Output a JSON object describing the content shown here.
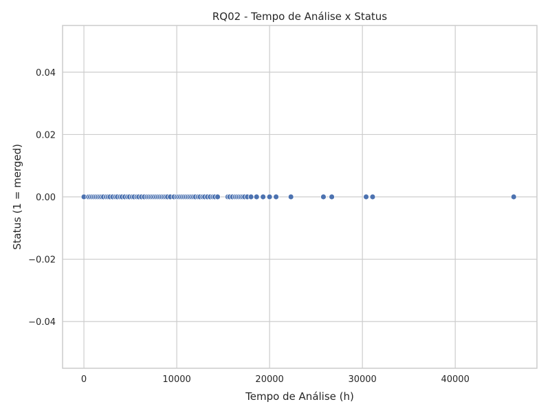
{
  "chart_data": {
    "type": "scatter",
    "title": "RQ02 - Tempo de Análise x Status",
    "xlabel": "Tempo de Análise (h)",
    "ylabel": "Status (1 = merged)",
    "xlim": [
      -2300,
      48800
    ],
    "ylim": [
      -0.055,
      0.055
    ],
    "x_ticks": [
      0,
      10000,
      20000,
      30000,
      40000
    ],
    "x_tick_labels": [
      "0",
      "10000",
      "20000",
      "30000",
      "40000"
    ],
    "y_ticks": [
      -0.04,
      -0.02,
      0.0,
      0.02,
      0.04
    ],
    "y_tick_labels": [
      "−0.04",
      "−0.02",
      "0.00",
      "0.02",
      "0.04"
    ],
    "grid": true,
    "marker_color": "#4c72b0",
    "points": [
      {
        "x": 0,
        "y": 0
      },
      {
        "x": 500,
        "y": 0
      },
      {
        "x": 700,
        "y": 0
      },
      {
        "x": 900,
        "y": 0
      },
      {
        "x": 1100,
        "y": 0
      },
      {
        "x": 1300,
        "y": 0
      },
      {
        "x": 1500,
        "y": 0
      },
      {
        "x": 1700,
        "y": 0
      },
      {
        "x": 1900,
        "y": 0
      },
      {
        "x": 2100,
        "y": 0
      },
      {
        "x": 2400,
        "y": 0
      },
      {
        "x": 2600,
        "y": 0
      },
      {
        "x": 2800,
        "y": 0
      },
      {
        "x": 3100,
        "y": 0
      },
      {
        "x": 3400,
        "y": 0
      },
      {
        "x": 3600,
        "y": 0
      },
      {
        "x": 3900,
        "y": 0
      },
      {
        "x": 4100,
        "y": 0
      },
      {
        "x": 4400,
        "y": 0
      },
      {
        "x": 4700,
        "y": 0
      },
      {
        "x": 4900,
        "y": 0
      },
      {
        "x": 5200,
        "y": 0
      },
      {
        "x": 5400,
        "y": 0
      },
      {
        "x": 5700,
        "y": 0
      },
      {
        "x": 5900,
        "y": 0
      },
      {
        "x": 6200,
        "y": 0
      },
      {
        "x": 6500,
        "y": 0
      },
      {
        "x": 6800,
        "y": 0
      },
      {
        "x": 7000,
        "y": 0
      },
      {
        "x": 7200,
        "y": 0
      },
      {
        "x": 7400,
        "y": 0
      },
      {
        "x": 7600,
        "y": 0
      },
      {
        "x": 7800,
        "y": 0
      },
      {
        "x": 8000,
        "y": 0
      },
      {
        "x": 8200,
        "y": 0
      },
      {
        "x": 8400,
        "y": 0
      },
      {
        "x": 8600,
        "y": 0
      },
      {
        "x": 8800,
        "y": 0
      },
      {
        "x": 9000,
        "y": 0
      },
      {
        "x": 9300,
        "y": 0
      },
      {
        "x": 9700,
        "y": 0
      },
      {
        "x": 10000,
        "y": 0
      },
      {
        "x": 10200,
        "y": 0
      },
      {
        "x": 10400,
        "y": 0
      },
      {
        "x": 10600,
        "y": 0
      },
      {
        "x": 10800,
        "y": 0
      },
      {
        "x": 11000,
        "y": 0
      },
      {
        "x": 11200,
        "y": 0
      },
      {
        "x": 11400,
        "y": 0
      },
      {
        "x": 11600,
        "y": 0
      },
      {
        "x": 11800,
        "y": 0
      },
      {
        "x": 12000,
        "y": 0
      },
      {
        "x": 12300,
        "y": 0
      },
      {
        "x": 12500,
        "y": 0
      },
      {
        "x": 12800,
        "y": 0
      },
      {
        "x": 13000,
        "y": 0
      },
      {
        "x": 13300,
        "y": 0
      },
      {
        "x": 13600,
        "y": 0
      },
      {
        "x": 13900,
        "y": 0
      },
      {
        "x": 14100,
        "y": 0
      },
      {
        "x": 14400,
        "y": 0
      },
      {
        "x": 15500,
        "y": 0
      },
      {
        "x": 15700,
        "y": 0
      },
      {
        "x": 16000,
        "y": 0
      },
      {
        "x": 16300,
        "y": 0
      },
      {
        "x": 16500,
        "y": 0
      },
      {
        "x": 16700,
        "y": 0
      },
      {
        "x": 16900,
        "y": 0
      },
      {
        "x": 17100,
        "y": 0
      },
      {
        "x": 17300,
        "y": 0
      },
      {
        "x": 17600,
        "y": 0
      },
      {
        "x": 18000,
        "y": 0
      },
      {
        "x": 18600,
        "y": 0
      },
      {
        "x": 19300,
        "y": 0
      },
      {
        "x": 20000,
        "y": 0
      },
      {
        "x": 20700,
        "y": 0
      },
      {
        "x": 22300,
        "y": 0
      },
      {
        "x": 25800,
        "y": 0
      },
      {
        "x": 26700,
        "y": 0
      },
      {
        "x": 30400,
        "y": 0
      },
      {
        "x": 31100,
        "y": 0
      },
      {
        "x": 46300,
        "y": 0
      }
    ]
  }
}
